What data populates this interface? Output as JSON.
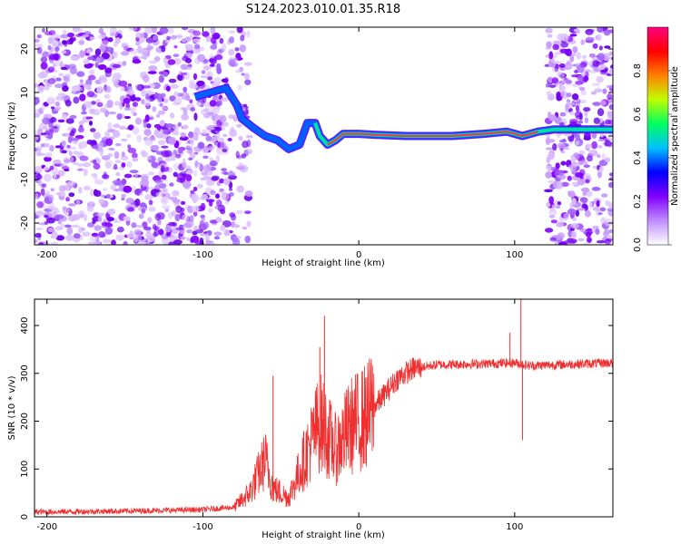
{
  "title": "S124.2023.010.01.35.R18",
  "chart_data": [
    {
      "type": "heatmap",
      "xlabel": "Height of straight line (km)",
      "ylabel": "Frequency (Hz)",
      "xlim": [
        -208,
        163
      ],
      "ylim": [
        -25,
        25
      ],
      "xticks": [
        -200,
        -100,
        0,
        100
      ],
      "yticks": [
        -20,
        -10,
        0,
        10,
        20
      ],
      "colorbar": {
        "label": "Normalized spectral amplitude",
        "range": [
          0,
          1
        ],
        "ticks": [
          "0.0",
          "0.2",
          "0.4",
          "0.6",
          "0.8"
        ],
        "colors": [
          "#ffffff",
          "#c08cff",
          "#8000ff",
          "#0000ff",
          "#00c0ff",
          "#00ff60",
          "#c0ff00",
          "#ff8000",
          "#ff0000",
          "#ff0080"
        ]
      },
      "signal_track": [
        {
          "x": -105,
          "y": 9
        },
        {
          "x": -95,
          "y": 10
        },
        {
          "x": -85,
          "y": 11
        },
        {
          "x": -78,
          "y": 7
        },
        {
          "x": -75,
          "y": 4
        },
        {
          "x": -68,
          "y": 2
        },
        {
          "x": -60,
          "y": 0
        },
        {
          "x": -52,
          "y": -1
        },
        {
          "x": -45,
          "y": -3
        },
        {
          "x": -38,
          "y": -2
        },
        {
          "x": -33,
          "y": 3
        },
        {
          "x": -28,
          "y": 3
        },
        {
          "x": -25,
          "y": 0
        },
        {
          "x": -20,
          "y": -2
        },
        {
          "x": -15,
          "y": -1
        },
        {
          "x": -10,
          "y": 0.5
        },
        {
          "x": 0,
          "y": 0.5
        },
        {
          "x": 10,
          "y": 0.3
        },
        {
          "x": 30,
          "y": 0
        },
        {
          "x": 60,
          "y": 0
        },
        {
          "x": 80,
          "y": 0.5
        },
        {
          "x": 95,
          "y": 1
        },
        {
          "x": 105,
          "y": 0
        },
        {
          "x": 115,
          "y": 1
        },
        {
          "x": 125,
          "y": 1.5
        },
        {
          "x": 163,
          "y": 1.5
        }
      ]
    },
    {
      "type": "line",
      "xlabel": "Height of straight line (km)",
      "ylabel": "SNR (10 * v/v)",
      "xlim": [
        -208,
        163
      ],
      "ylim": [
        0,
        455
      ],
      "xticks": [
        -200,
        -100,
        0,
        100
      ],
      "yticks": [
        0,
        100,
        200,
        300,
        400
      ],
      "series_color": "#f03030",
      "envelope": [
        {
          "x": -208,
          "y": 10
        },
        {
          "x": -150,
          "y": 12
        },
        {
          "x": -100,
          "y": 15
        },
        {
          "x": -80,
          "y": 20
        },
        {
          "x": -70,
          "y": 50
        },
        {
          "x": -60,
          "y": 120
        },
        {
          "x": -55,
          "y": 60
        },
        {
          "x": -45,
          "y": 40
        },
        {
          "x": -35,
          "y": 120
        },
        {
          "x": -25,
          "y": 200
        },
        {
          "x": -15,
          "y": 140
        },
        {
          "x": -5,
          "y": 190
        },
        {
          "x": 5,
          "y": 210
        },
        {
          "x": 15,
          "y": 250
        },
        {
          "x": 25,
          "y": 290
        },
        {
          "x": 35,
          "y": 310
        },
        {
          "x": 50,
          "y": 318
        },
        {
          "x": 80,
          "y": 320
        },
        {
          "x": 100,
          "y": 322
        },
        {
          "x": 110,
          "y": 316
        },
        {
          "x": 163,
          "y": 322
        }
      ],
      "peaks": [
        {
          "x": -55,
          "y": 295
        },
        {
          "x": -25,
          "y": 355
        },
        {
          "x": -22,
          "y": 420
        },
        {
          "x": 8,
          "y": 330
        },
        {
          "x": 97,
          "y": 385
        },
        {
          "x": 104,
          "y": 455
        },
        {
          "x": 105,
          "y": 160
        }
      ]
    }
  ]
}
